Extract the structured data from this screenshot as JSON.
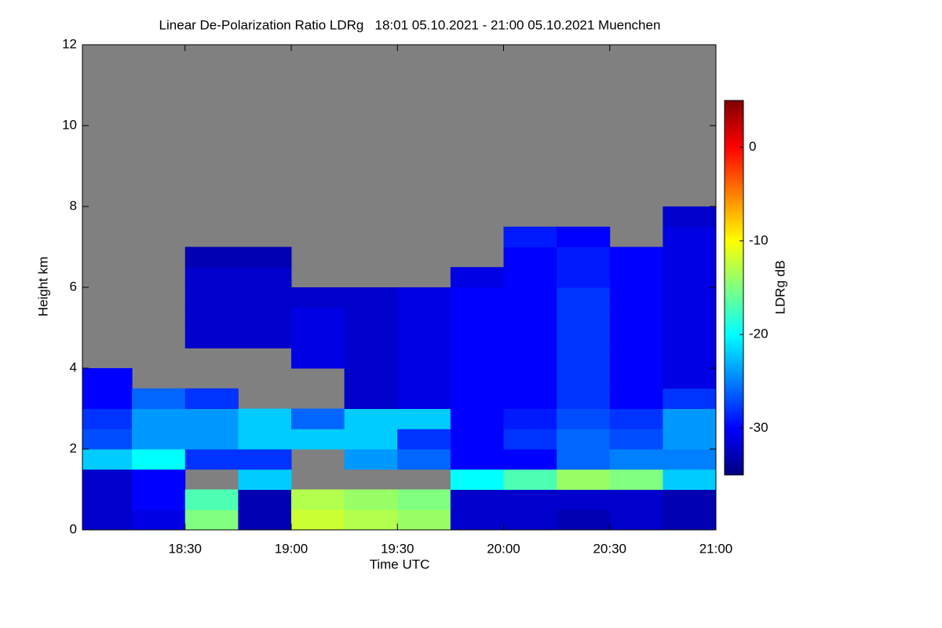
{
  "chart_data": {
    "type": "heatmap",
    "title": "Linear De-Polarization Ratio LDRg   18:01 05.10.2021 - 21:00 05.10.2021 Muenchen",
    "x_label": "Time UTC",
    "y_label": "Height km",
    "colorbar_label": "LDRg dB",
    "xlim": [
      18.0167,
      21.0
    ],
    "xticks": [
      {
        "value": 18.5,
        "label": "18:30"
      },
      {
        "value": 19.0,
        "label": "19:00"
      },
      {
        "value": 19.5,
        "label": "19:30"
      },
      {
        "value": 20.0,
        "label": "20:00"
      },
      {
        "value": 20.5,
        "label": "20:30"
      },
      {
        "value": 21.0,
        "label": "21:00"
      }
    ],
    "ylim": [
      0,
      12
    ],
    "yticks": [
      0,
      2,
      4,
      6,
      8,
      10,
      12
    ],
    "zlim": [
      -35,
      5
    ],
    "zticks": [
      -30,
      -20,
      -10,
      0
    ],
    "colormap": [
      "#00007f",
      "#0000ff",
      "#0080ff",
      "#00ffff",
      "#80ff80",
      "#ffff00",
      "#ff8000",
      "#ff0000",
      "#7f0000"
    ],
    "missing_color": "#808080",
    "x": [
      18.0,
      18.25,
      18.5,
      18.75,
      19.0,
      19.25,
      19.5,
      19.75,
      20.0,
      20.25,
      20.5,
      20.75
    ],
    "y": [
      0,
      0.5,
      1,
      1.5,
      2,
      2.5,
      3,
      3.5,
      4,
      4.5,
      5,
      5.5,
      6,
      6.5,
      7,
      7.5
    ],
    "values": [
      [
        -32,
        -31,
        -15,
        -33,
        -12,
        -13,
        -14,
        -32,
        -32,
        -33,
        -32,
        -33
      ],
      [
        -32,
        -30,
        -17,
        -33,
        -13,
        -14,
        -15,
        -32,
        -32,
        -32,
        -32,
        -33
      ],
      [
        -32,
        -30,
        null,
        -22,
        null,
        null,
        null,
        -20,
        -17,
        -14,
        -15,
        -22
      ],
      [
        -22,
        -20,
        -28,
        -28,
        null,
        -24,
        -26,
        -30,
        -30,
        -26,
        -25,
        -25
      ],
      [
        -27,
        -24,
        -24,
        -22,
        -22,
        -22,
        -28,
        -30,
        -28,
        -26,
        -27,
        -24
      ],
      [
        -28,
        -24,
        -24,
        -22,
        -26,
        -22,
        -22,
        -30,
        -29,
        -27,
        -28,
        -24
      ],
      [
        -30,
        -26,
        -28,
        null,
        null,
        -32,
        -31,
        -30,
        -30,
        -28,
        -30,
        -28
      ],
      [
        -30,
        null,
        null,
        null,
        null,
        -32,
        -31,
        -30,
        -30,
        -28,
        -30,
        -31
      ],
      [
        null,
        null,
        null,
        null,
        -31,
        -32,
        -31,
        -30,
        -30,
        -28,
        -30,
        -31
      ],
      [
        null,
        null,
        -32,
        -32,
        -31,
        -32,
        -31,
        -30,
        -30,
        -28,
        -30,
        -31
      ],
      [
        null,
        null,
        -32,
        -32,
        -31,
        -32,
        -31,
        -30,
        -30,
        -28,
        -30,
        -31
      ],
      [
        null,
        null,
        -32,
        -32,
        -32,
        -32,
        -31,
        -30,
        -30,
        -28,
        -30,
        -31
      ],
      [
        null,
        null,
        -32,
        -32,
        null,
        null,
        null,
        -31,
        -30,
        -29,
        -30,
        -31
      ],
      [
        null,
        null,
        -33,
        -33,
        null,
        null,
        null,
        null,
        -30,
        -29,
        -30,
        -31
      ],
      [
        null,
        null,
        null,
        null,
        null,
        null,
        null,
        null,
        -29,
        -30,
        null,
        -31
      ],
      [
        null,
        null,
        null,
        null,
        null,
        null,
        null,
        null,
        null,
        null,
        null,
        -32
      ]
    ]
  }
}
